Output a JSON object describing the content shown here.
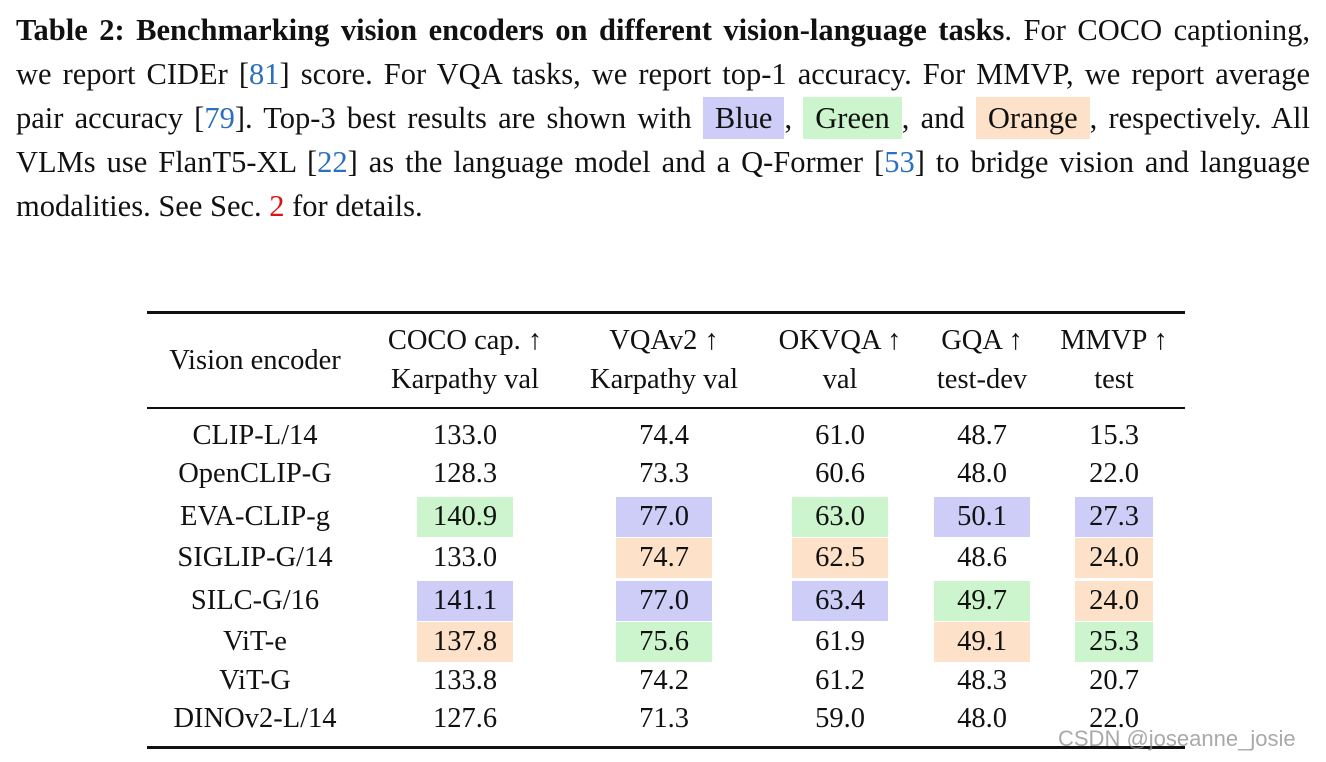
{
  "caption": [
    {
      "text": "Table 2: Benchmarking vision encoders on different vision-language tasks",
      "style": "bold"
    },
    {
      "text": ". For COCO captioning, we report CIDEr ["
    },
    {
      "text": "81",
      "style": "cite"
    },
    {
      "text": "] score. For VQA tasks, we report top-1 accuracy. For MMVP, we report average pair accuracy ["
    },
    {
      "text": "79",
      "style": "cite"
    },
    {
      "text": "]. Top-3 best results are shown with "
    },
    {
      "text": "Blue",
      "highlight": "blue"
    },
    {
      "text": ","
    },
    {
      "text": "Green",
      "highlight": "green"
    },
    {
      "text": ", and "
    },
    {
      "text": "Orange",
      "highlight": "orange"
    },
    {
      "text": ", respectively. All VLMs use FlanT5-XL ["
    },
    {
      "text": "22",
      "style": "cite"
    },
    {
      "text": "] as the language model and a Q-Former ["
    },
    {
      "text": "53",
      "style": "cite"
    },
    {
      "text": "] to bridge vision and language modalities. See Sec. "
    },
    {
      "text": "2",
      "style": "ref"
    },
    {
      "text": " for details."
    }
  ],
  "highlight_colors": {
    "blue": "#cdcdf7",
    "green": "#cdf5cd",
    "orange": "#fde1c8"
  },
  "table": {
    "header": {
      "first": "Vision encoder",
      "columns": [
        {
          "title": "COCO cap. ↑",
          "split": "Karpathy val"
        },
        {
          "title": "VQAv2 ↑",
          "split": "Karpathy val"
        },
        {
          "title": "OKVQA ↑",
          "split": "val"
        },
        {
          "title": "GQA ↑",
          "split": "test-dev"
        },
        {
          "title": "MMVP ↑",
          "split": "test"
        }
      ]
    },
    "rows": [
      {
        "encoder": "CLIP-L/14",
        "cells": [
          {
            "text": "133.0"
          },
          {
            "text": "74.4"
          },
          {
            "text": "61.0"
          },
          {
            "text": "48.7"
          },
          {
            "text": "15.3"
          }
        ]
      },
      {
        "encoder": "OpenCLIP-G",
        "cells": [
          {
            "text": "128.3"
          },
          {
            "text": "73.3"
          },
          {
            "text": "60.6"
          },
          {
            "text": "48.0"
          },
          {
            "text": "22.0"
          }
        ]
      },
      {
        "encoder": "EVA-CLIP-g",
        "cells": [
          {
            "text": "140.9",
            "highlight": "green"
          },
          {
            "text": "77.0",
            "highlight": "blue"
          },
          {
            "text": "63.0",
            "highlight": "green"
          },
          {
            "text": "50.1",
            "highlight": "blue"
          },
          {
            "text": "27.3",
            "highlight": "blue"
          }
        ]
      },
      {
        "encoder": "SIGLIP-G/14",
        "cells": [
          {
            "text": "133.0"
          },
          {
            "text": "74.7",
            "highlight": "orange"
          },
          {
            "text": "62.5",
            "highlight": "orange"
          },
          {
            "text": "48.6"
          },
          {
            "text": "24.0",
            "highlight": "orange"
          }
        ]
      },
      {
        "encoder": "SILC-G/16",
        "cells": [
          {
            "text": "141.1",
            "highlight": "blue"
          },
          {
            "text": "77.0",
            "highlight": "blue"
          },
          {
            "text": "63.4",
            "highlight": "blue"
          },
          {
            "text": "49.7",
            "highlight": "green"
          },
          {
            "text": "24.0",
            "highlight": "orange"
          }
        ]
      },
      {
        "encoder": "ViT-e",
        "cells": [
          {
            "text": "137.8",
            "highlight": "orange"
          },
          {
            "text": "75.6",
            "highlight": "green"
          },
          {
            "text": "61.9"
          },
          {
            "text": "49.1",
            "highlight": "orange"
          },
          {
            "text": "25.3",
            "highlight": "green"
          }
        ]
      },
      {
        "encoder": "ViT-G",
        "cells": [
          {
            "text": "133.8"
          },
          {
            "text": "74.2"
          },
          {
            "text": "61.2"
          },
          {
            "text": "48.3"
          },
          {
            "text": "20.7"
          }
        ]
      },
      {
        "encoder": "DINOv2-L/14",
        "cells": [
          {
            "text": "127.6"
          },
          {
            "text": "71.3"
          },
          {
            "text": "59.0"
          },
          {
            "text": "48.0"
          },
          {
            "text": "22.0"
          }
        ]
      }
    ]
  },
  "watermark": "CSDN @joseanne_josie"
}
